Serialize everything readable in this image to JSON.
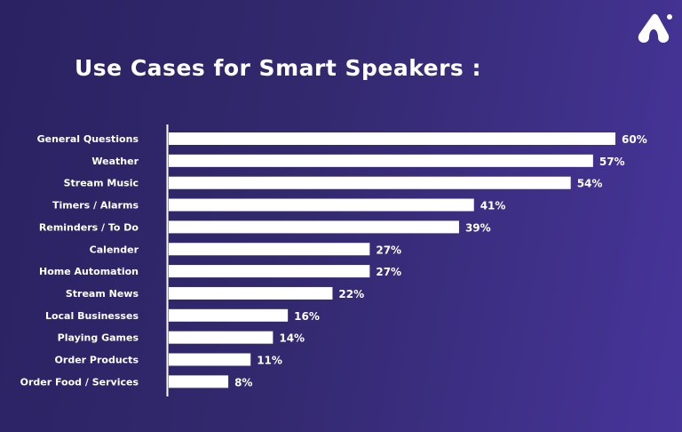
{
  "chart_data": {
    "type": "bar",
    "orientation": "horizontal",
    "title": "Use Cases for Smart Speakers :",
    "categories": [
      "General Questions",
      "Weather",
      "Stream Music",
      "Timers / Alarms",
      "Reminders / To Do",
      "Calender",
      "Home Automation",
      "Stream News",
      "Local Businesses",
      "Playing Games",
      "Order Products",
      "Order Food / Services"
    ],
    "values": [
      60,
      57,
      54,
      41,
      39,
      27,
      27,
      22,
      16,
      14,
      11,
      8
    ],
    "value_labels": [
      "60%",
      "57%",
      "54%",
      "41%",
      "39%",
      "27%",
      "27%",
      "22%",
      "16%",
      "14%",
      "11%",
      "8%"
    ],
    "xlim": [
      0,
      60
    ],
    "grid": false,
    "bar_color": "#ffffff"
  },
  "colors": {
    "bg_left": "#2a2262",
    "bg_right": "#47359a",
    "text": "#ffffff"
  },
  "logo": {
    "icon": "brand-logo-icon"
  }
}
